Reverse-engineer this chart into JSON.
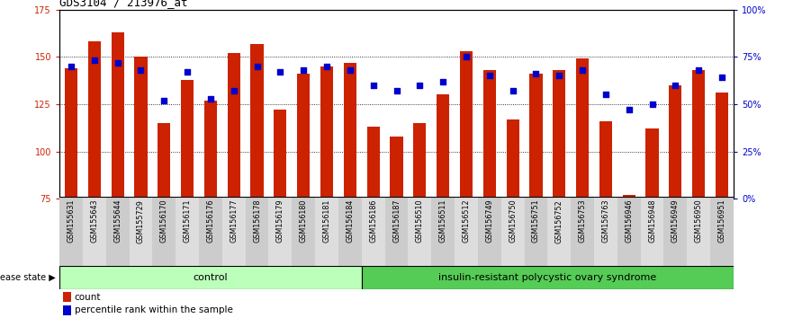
{
  "title": "GDS3104 / 213976_at",
  "samples": [
    "GSM155631",
    "GSM155643",
    "GSM155644",
    "GSM155729",
    "GSM156170",
    "GSM156171",
    "GSM156176",
    "GSM156177",
    "GSM156178",
    "GSM156179",
    "GSM156180",
    "GSM156181",
    "GSM156184",
    "GSM156186",
    "GSM156187",
    "GSM156510",
    "GSM156511",
    "GSM156512",
    "GSM156749",
    "GSM156750",
    "GSM156751",
    "GSM156752",
    "GSM156753",
    "GSM156763",
    "GSM156946",
    "GSM156948",
    "GSM156949",
    "GSM156950",
    "GSM156951"
  ],
  "bar_values": [
    144,
    158,
    163,
    150,
    115,
    138,
    127,
    152,
    157,
    122,
    141,
    145,
    147,
    113,
    108,
    115,
    130,
    153,
    143,
    117,
    141,
    143,
    149,
    116,
    77,
    112,
    135,
    143,
    131
  ],
  "dot_values": [
    70,
    73,
    72,
    68,
    52,
    67,
    53,
    57,
    70,
    67,
    68,
    70,
    68,
    60,
    57,
    60,
    62,
    75,
    65,
    57,
    66,
    65,
    68,
    55,
    47,
    50,
    60,
    68,
    64
  ],
  "control_count": 13,
  "ylim_left": [
    75,
    175
  ],
  "ylim_right": [
    0,
    100
  ],
  "yticks_left": [
    75,
    100,
    125,
    150,
    175
  ],
  "yticks_right": [
    0,
    25,
    50,
    75,
    100
  ],
  "ytick_right_labels": [
    "0%",
    "25%",
    "50%",
    "75%",
    "100%"
  ],
  "bar_color": "#cc2200",
  "dot_color": "#0000cc",
  "control_color": "#bbffbb",
  "disease_color": "#55cc55",
  "title_fontsize": 9,
  "tick_fontsize": 7,
  "bar_width": 0.55
}
